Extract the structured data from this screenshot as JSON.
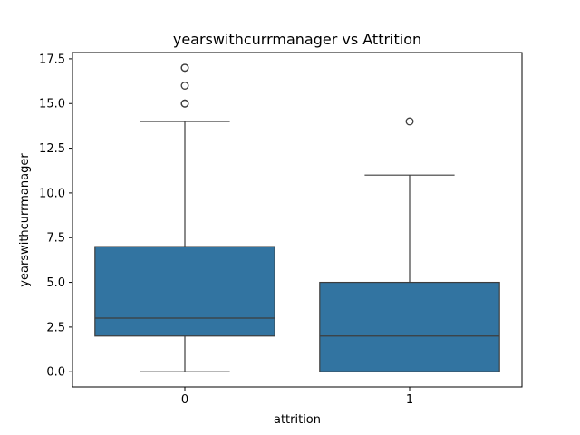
{
  "chart_data": {
    "type": "box",
    "title": "yearswithcurrmanager vs Attrition",
    "xlabel": "attrition",
    "ylabel": "yearswithcurrmanager",
    "ylim": [
      -0.85,
      17.85
    ],
    "yticks": [
      "0.0",
      "2.5",
      "5.0",
      "7.5",
      "10.0",
      "12.5",
      "15.0",
      "17.5"
    ],
    "categories": [
      "0",
      "1"
    ],
    "boxes": [
      {
        "category": "0",
        "whisker_low": 0,
        "q1": 2,
        "median": 3,
        "q3": 7,
        "whisker_high": 14,
        "outliers": [
          15,
          15,
          16,
          17,
          17
        ]
      },
      {
        "category": "1",
        "whisker_low": 0,
        "q1": 0,
        "median": 2,
        "q3": 5,
        "whisker_high": 11,
        "outliers": [
          14
        ]
      }
    ],
    "box_color": "#3274a1",
    "line_color": "#3d3d3d",
    "grid": false,
    "legend": "none"
  }
}
